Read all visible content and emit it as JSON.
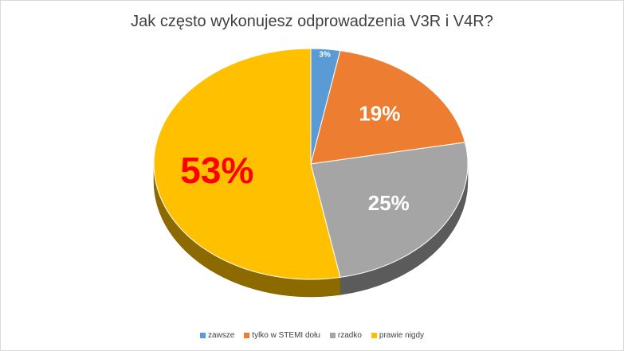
{
  "chart_data": {
    "type": "pie",
    "title": "Jak często wykonujesz odprowadzenia V3R i V4R?",
    "legend_position": "bottom",
    "three_d": true,
    "slices": [
      {
        "label": "zawsze",
        "value": 3,
        "data_label": "3%",
        "color": "#5b9bd5",
        "label_color": "#ffffff"
      },
      {
        "label": "tylko w STEMI dołu",
        "value": 19,
        "data_label": "19%",
        "color": "#ed7d31",
        "label_color": "#ffffff"
      },
      {
        "label": "rzadko",
        "value": 25,
        "data_label": "25%",
        "color": "#a5a5a5",
        "label_color": "#ffffff"
      },
      {
        "label": "prawie nigdy",
        "value": 53,
        "data_label": "53%",
        "color": "#ffc000",
        "label_color": "#ff0000"
      }
    ]
  }
}
